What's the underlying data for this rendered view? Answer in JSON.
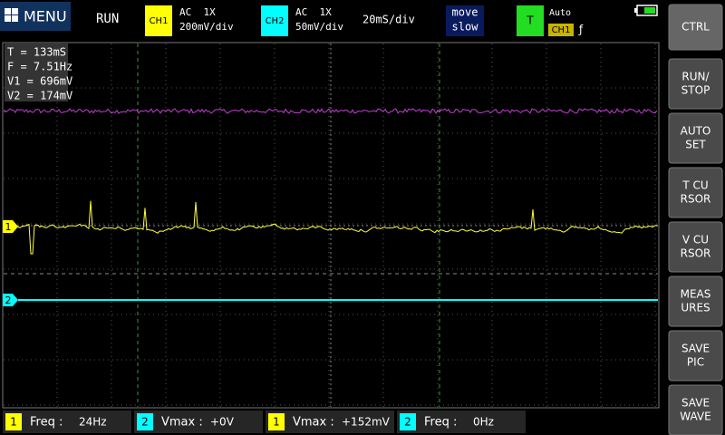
{
  "top_bar": {
    "menu": "MENU",
    "status": "RUN",
    "ch1": {
      "label": "CH1",
      "coupling": "AC  1X",
      "scale": "200mV/div"
    },
    "ch2": {
      "label": "CH2",
      "coupling": "AC  1X",
      "scale": "50mV/div"
    },
    "timebase": "20mS/div",
    "move": {
      "line1": "move",
      "line2": "slow"
    },
    "trigger": {
      "label": "T",
      "mode": "Auto",
      "source": "CH1",
      "edge": "ƒ"
    }
  },
  "readout": [
    "T = 133mS",
    "F = 7.51Hz",
    "V1 = 696mV",
    "V2 = 174mV"
  ],
  "markers": {
    "ch1": "1",
    "ch2": "2"
  },
  "buttons": [
    [
      "CTRL"
    ],
    [
      "RUN/",
      "STOP"
    ],
    [
      "AUTO",
      "SET"
    ],
    [
      "T CU",
      "RSOR"
    ],
    [
      "V CU",
      "RSOR"
    ],
    [
      "MEAS",
      "URES"
    ],
    [
      "SAVE",
      "PIC"
    ],
    [
      "SAVE",
      "WAVE"
    ]
  ],
  "measurements": [
    {
      "channel": "1",
      "label": "Freq :",
      "value": "24Hz"
    },
    {
      "channel": "2",
      "label": "Vmax :",
      "value": "+0V"
    },
    {
      "channel": "1",
      "label": "Vmax :",
      "value": "+152mV"
    },
    {
      "channel": "2",
      "label": "Freq :",
      "value": "0Hz"
    }
  ]
}
